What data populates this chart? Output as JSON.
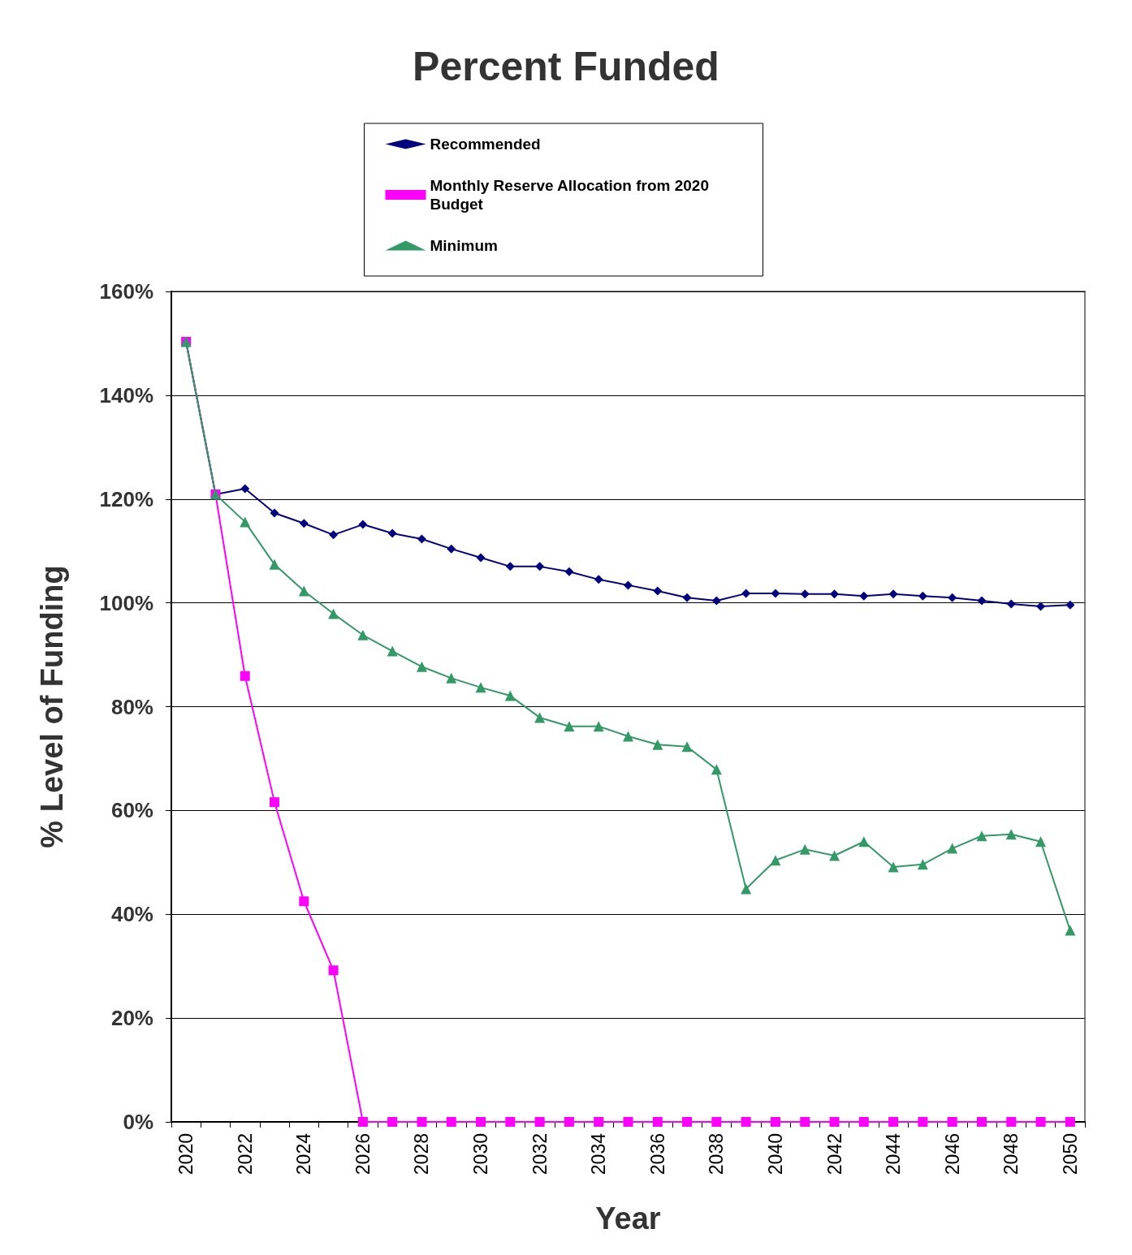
{
  "chart_data": {
    "type": "line",
    "title": "Percent Funded",
    "xlabel": "Year",
    "ylabel": "% Level of Funding",
    "categories": [
      "2020",
      null,
      "2022",
      null,
      "2024",
      null,
      "2026",
      null,
      "2028",
      null,
      "2030",
      null,
      "2032",
      null,
      "2034",
      null,
      "2036",
      null,
      "2038",
      null,
      "2040",
      null,
      "2042",
      null,
      "2044",
      null,
      "2046",
      null,
      "2048",
      null,
      "2050"
    ],
    "series": [
      {
        "name": "Recommended",
        "color": "#000080",
        "marker": "diamond",
        "values": [
          150.3,
          120.9,
          122.0,
          117.3,
          115.3,
          113.1,
          115.1,
          113.4,
          112.3,
          110.4,
          108.7,
          107.0,
          107.0,
          106.0,
          104.5,
          103.4,
          102.3,
          101.0,
          100.4,
          101.8,
          101.8,
          101.7,
          101.7,
          101.3,
          101.7,
          101.3,
          101.0,
          100.4,
          99.8,
          99.3,
          99.6
        ]
      },
      {
        "name": "Monthly Reserve Allocation from 2020 Budget",
        "color": "#ff00ff",
        "marker": "square",
        "values": [
          150.3,
          120.9,
          85.9,
          61.6,
          42.5,
          29.2,
          0,
          0,
          0,
          0,
          0,
          0,
          0,
          0,
          0,
          0,
          0,
          0,
          0,
          0,
          0,
          0,
          0,
          0,
          0,
          0,
          0,
          0,
          0,
          0,
          0
        ]
      },
      {
        "name": "Minimum",
        "color": "#339966",
        "marker": "triangle",
        "values": [
          150.3,
          120.9,
          115.6,
          107.4,
          102.3,
          97.9,
          93.8,
          90.7,
          87.7,
          85.5,
          83.7,
          82.1,
          77.9,
          76.2,
          76.2,
          74.3,
          72.7,
          72.3,
          67.9,
          44.9,
          50.4,
          52.5,
          51.3,
          54.0,
          49.1,
          49.6,
          52.7,
          55.1,
          55.4,
          54.0,
          36.9
        ]
      }
    ],
    "ylim": [
      0,
      160
    ],
    "yticks": [
      {
        "value": 0,
        "label": "0%"
      },
      {
        "value": 20,
        "label": "20%"
      },
      {
        "value": 40,
        "label": "40%"
      },
      {
        "value": 60,
        "label": "60%"
      },
      {
        "value": 80,
        "label": "80%"
      },
      {
        "value": 100,
        "label": "100%"
      },
      {
        "value": 120,
        "label": "120%"
      },
      {
        "value": 140,
        "label": "140%"
      },
      {
        "value": 160,
        "label": "160%"
      }
    ],
    "grid": "y",
    "legend": "top",
    "line_style": "solid"
  }
}
